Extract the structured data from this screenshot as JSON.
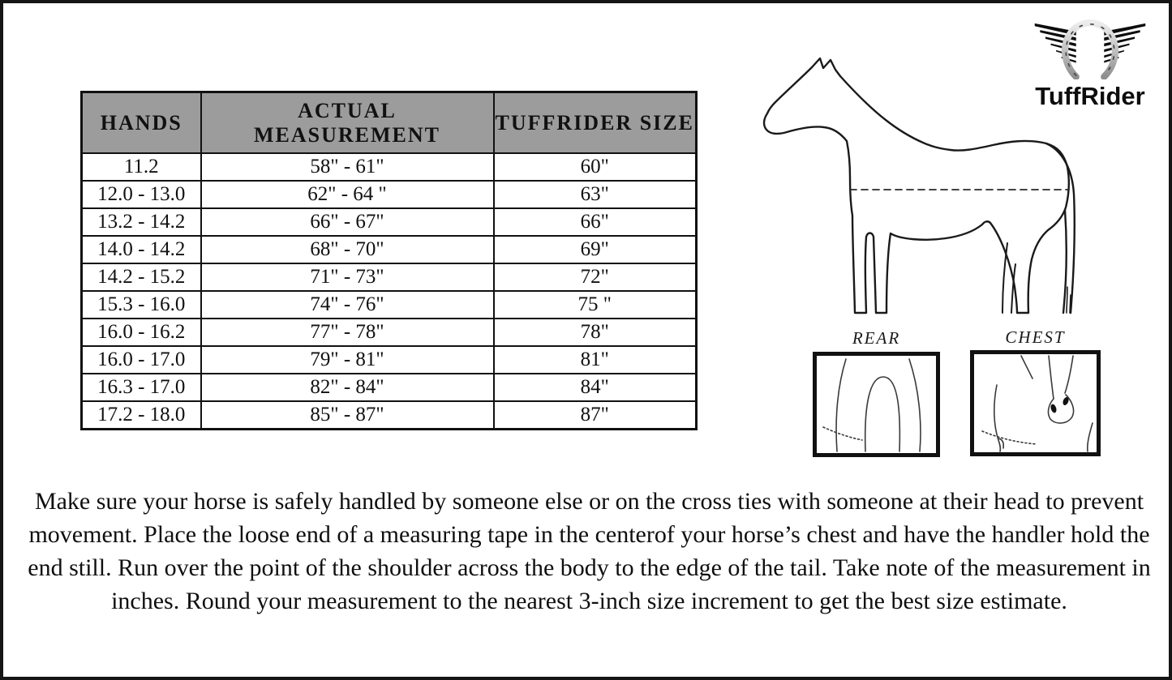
{
  "logo": {
    "brand": "TuffRider",
    "icon": "winged-horseshoe"
  },
  "table": {
    "header_bg": "#9c9c9c",
    "headers": [
      "HANDS",
      "ACTUAL MEASUREMENT",
      "TUFFRIDER SIZE"
    ],
    "rows": [
      [
        "11.2",
        "58\" - 61\"",
        "60\""
      ],
      [
        "12.0 - 13.0",
        "62\" - 64 \"",
        "63\""
      ],
      [
        "13.2 - 14.2",
        "66\" - 67\"",
        "66\""
      ],
      [
        "14.0 - 14.2",
        "68\" - 70\"",
        "69\""
      ],
      [
        "14.2 - 15.2",
        "71\" - 73\"",
        "72\""
      ],
      [
        "15.3 - 16.0",
        "74\" - 76\"",
        "75 \""
      ],
      [
        "16.0 - 16.2",
        "77\" - 78\"",
        "78\""
      ],
      [
        "16.0 - 17.0",
        "79\" - 81\"",
        "81\""
      ],
      [
        "16.3 - 17.0",
        "82\" - 84\"",
        "84\""
      ],
      [
        "17.2 - 18.0",
        "85\" - 87\"",
        "87\""
      ]
    ]
  },
  "diagrams": {
    "rear_label": "REAR",
    "chest_label": "CHEST"
  },
  "instructions": {
    "text": "Make sure your horse is safely handled by someone else or on the cross ties with someone at their head to prevent movement. Place the loose end of a measuring tape in the centerof your horse’s chest and have the handler hold the end still. Run over the point of the shoulder across the body to the edge of the tail. Take note of the measurement in inches. Round your measurement to the nearest 3-inch size increment to get the best size estimate."
  }
}
